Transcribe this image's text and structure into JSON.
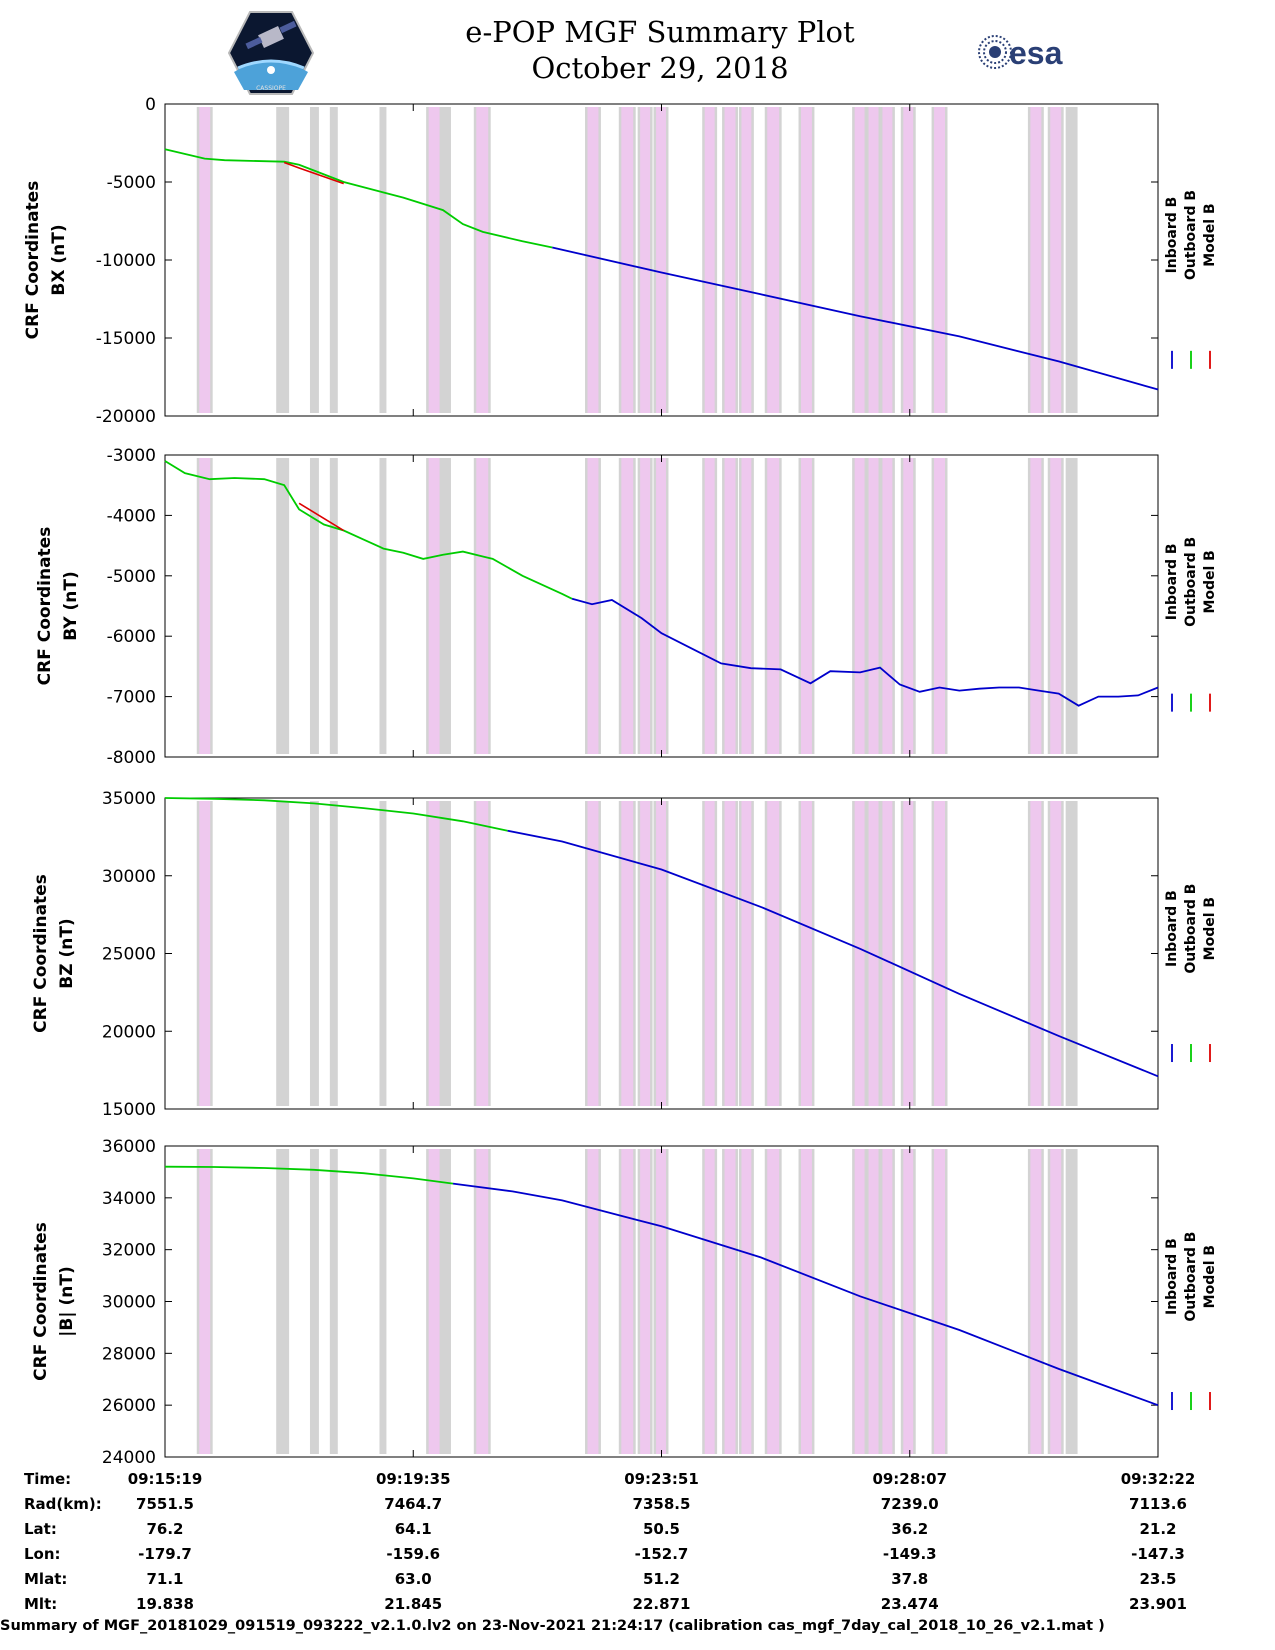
{
  "header": {
    "title_line1": "e-POP MGF Summary Plot",
    "title_line2": "October 29, 2018",
    "logo_left_text": "CASSIOPE",
    "logo_right_text": "esa"
  },
  "colors": {
    "inboard": "#0000cc",
    "outboard": "#00cc00",
    "model": "#dd0000",
    "gap_gray": "#d3d3d3",
    "gap_pink": "#eec8ee"
  },
  "legend": [
    "Inboard B",
    "Outboard B",
    "Model B"
  ],
  "chart_data": [
    {
      "type": "line",
      "ylabel_line1": "CRF Coordinates",
      "ylabel_line2": "BX (nT)",
      "ylim": [
        -20000,
        0
      ],
      "yticks": [
        0,
        -5000,
        -10000,
        -15000,
        -20000
      ],
      "ytick_labels": [
        "0",
        "-5000",
        "-10000",
        "-15000",
        "-20000"
      ],
      "switch_x": 0.39,
      "series": [
        {
          "name": "Outboard B",
          "x": [
            0,
            0.04,
            0.06,
            0.12,
            0.135,
            0.18,
            0.24,
            0.28,
            0.3,
            0.32,
            0.36,
            0.39
          ],
          "y": [
            -2900,
            -3500,
            -3600,
            -3700,
            -3900,
            -5000,
            -6000,
            -6800,
            -7700,
            -8200,
            -8800,
            -9200
          ]
        },
        {
          "name": "Inboard B",
          "x": [
            0.39,
            0.5,
            0.6,
            0.7,
            0.8,
            0.9,
            1.0
          ],
          "y": [
            -9200,
            -10800,
            -12200,
            -13600,
            -14900,
            -16500,
            -18300
          ]
        },
        {
          "name": "Model B",
          "x": [
            0.12,
            0.135,
            0.18
          ],
          "y": [
            -3750,
            -4100,
            -5100
          ]
        }
      ]
    },
    {
      "type": "line",
      "ylabel_line1": "CRF Coordinates",
      "ylabel_line2": "BY (nT)",
      "ylim": [
        -8000,
        -3000
      ],
      "yticks": [
        -3000,
        -4000,
        -5000,
        -6000,
        -7000,
        -8000
      ],
      "ytick_labels": [
        "-3000",
        "-4000",
        "-5000",
        "-6000",
        "-7000",
        "-8000"
      ],
      "switch_x": 0.41,
      "series": [
        {
          "name": "Outboard B",
          "x": [
            0,
            0.02,
            0.045,
            0.07,
            0.1,
            0.12,
            0.135,
            0.16,
            0.18,
            0.2,
            0.22,
            0.24,
            0.26,
            0.28,
            0.3,
            0.32,
            0.33,
            0.36,
            0.4,
            0.41
          ],
          "y": [
            -3100,
            -3300,
            -3400,
            -3380,
            -3400,
            -3500,
            -3900,
            -4150,
            -4250,
            -4400,
            -4550,
            -4620,
            -4720,
            -4650,
            -4600,
            -4680,
            -4720,
            -5000,
            -5300,
            -5380
          ]
        },
        {
          "name": "Inboard B",
          "x": [
            0.41,
            0.43,
            0.45,
            0.48,
            0.5,
            0.53,
            0.56,
            0.59,
            0.62,
            0.65,
            0.67,
            0.7,
            0.72,
            0.74,
            0.76,
            0.78,
            0.8,
            0.82,
            0.84,
            0.86,
            0.88,
            0.9,
            0.92,
            0.94,
            0.96,
            0.98,
            1.0
          ],
          "y": [
            -5380,
            -5470,
            -5400,
            -5700,
            -5950,
            -6200,
            -6450,
            -6530,
            -6550,
            -6780,
            -6580,
            -6600,
            -6520,
            -6800,
            -6920,
            -6850,
            -6900,
            -6870,
            -6850,
            -6850,
            -6900,
            -6950,
            -7150,
            -7000,
            -7000,
            -6980,
            -6850
          ]
        },
        {
          "name": "Model B",
          "x": [
            0.135,
            0.16,
            0.18
          ],
          "y": [
            -3800,
            -4050,
            -4250
          ]
        }
      ]
    },
    {
      "type": "line",
      "ylabel_line1": "CRF Coordinates",
      "ylabel_line2": "BZ (nT)",
      "ylim": [
        15000,
        35000
      ],
      "yticks": [
        35000,
        30000,
        25000,
        20000,
        15000
      ],
      "ytick_labels": [
        "35000",
        "30000",
        "25000",
        "20000",
        "15000"
      ],
      "switch_x": 0.345,
      "series": [
        {
          "name": "Outboard B",
          "x": [
            0,
            0.05,
            0.1,
            0.15,
            0.2,
            0.25,
            0.3,
            0.345
          ],
          "y": [
            35000,
            34950,
            34850,
            34650,
            34350,
            34000,
            33500,
            32900
          ]
        },
        {
          "name": "Inboard B",
          "x": [
            0.345,
            0.4,
            0.5,
            0.6,
            0.7,
            0.8,
            0.9,
            1.0
          ],
          "y": [
            32900,
            32200,
            30400,
            28000,
            25300,
            22400,
            19700,
            17100
          ]
        },
        {
          "name": "Model B",
          "x": [],
          "y": []
        }
      ]
    },
    {
      "type": "line",
      "ylabel_line1": "CRF Coordinates",
      "ylabel_line2": "|B| (nT)",
      "ylim": [
        24000,
        36000
      ],
      "yticks": [
        36000,
        34000,
        32000,
        30000,
        28000,
        26000,
        24000
      ],
      "ytick_labels": [
        "36000",
        "34000",
        "32000",
        "30000",
        "28000",
        "26000",
        "24000"
      ],
      "switch_x": 0.29,
      "series": [
        {
          "name": "Outboard B",
          "x": [
            0,
            0.05,
            0.1,
            0.15,
            0.2,
            0.25,
            0.29
          ],
          "y": [
            35200,
            35190,
            35150,
            35080,
            34950,
            34750,
            34550
          ]
        },
        {
          "name": "Inboard B",
          "x": [
            0.29,
            0.35,
            0.4,
            0.5,
            0.6,
            0.7,
            0.8,
            0.9,
            1.0
          ],
          "y": [
            34550,
            34250,
            33900,
            32900,
            31700,
            30200,
            28900,
            27400,
            26000
          ]
        },
        {
          "name": "Model B",
          "x": [],
          "y": []
        }
      ]
    }
  ],
  "gap_bands": [
    {
      "x": 0.034,
      "w": 0.012,
      "kind": "pink"
    },
    {
      "x": 0.112,
      "w": 0.013,
      "kind": "gray"
    },
    {
      "x": 0.146,
      "w": 0.009,
      "kind": "gray"
    },
    {
      "x": 0.166,
      "w": 0.008,
      "kind": "gray"
    },
    {
      "x": 0.216,
      "w": 0.007,
      "kind": "gray"
    },
    {
      "x": 0.265,
      "w": 0.012,
      "kind": "pink"
    },
    {
      "x": 0.277,
      "w": 0.011,
      "kind": "gray"
    },
    {
      "x": 0.313,
      "w": 0.013,
      "kind": "pink"
    },
    {
      "x": 0.425,
      "w": 0.012,
      "kind": "pink"
    },
    {
      "x": 0.459,
      "w": 0.013,
      "kind": "pink"
    },
    {
      "x": 0.478,
      "w": 0.011,
      "kind": "pink"
    },
    {
      "x": 0.494,
      "w": 0.011,
      "kind": "pink"
    },
    {
      "x": 0.543,
      "w": 0.011,
      "kind": "pink"
    },
    {
      "x": 0.563,
      "w": 0.012,
      "kind": "pink"
    },
    {
      "x": 0.58,
      "w": 0.011,
      "kind": "pink"
    },
    {
      "x": 0.606,
      "w": 0.013,
      "kind": "pink"
    },
    {
      "x": 0.64,
      "w": 0.012,
      "kind": "pink"
    },
    {
      "x": 0.694,
      "w": 0.011,
      "kind": "pink"
    },
    {
      "x": 0.708,
      "w": 0.011,
      "kind": "pink"
    },
    {
      "x": 0.722,
      "w": 0.011,
      "kind": "pink"
    },
    {
      "x": 0.743,
      "w": 0.011,
      "kind": "pink"
    },
    {
      "x": 0.774,
      "w": 0.012,
      "kind": "pink"
    },
    {
      "x": 0.871,
      "w": 0.012,
      "kind": "pink"
    },
    {
      "x": 0.891,
      "w": 0.012,
      "kind": "pink"
    },
    {
      "x": 0.907,
      "w": 0.012,
      "kind": "gray"
    }
  ],
  "x_axis": {
    "ticks": [
      0,
      0.25,
      0.5,
      0.75,
      1.0
    ]
  },
  "info_table": {
    "rows": [
      {
        "label": "Time:",
        "values": [
          "09:15:19",
          "09:19:35",
          "09:23:51",
          "09:28:07",
          "09:32:22"
        ]
      },
      {
        "label": "Rad(km):",
        "values": [
          "7551.5",
          "7464.7",
          "7358.5",
          "7239.0",
          "7113.6"
        ]
      },
      {
        "label": "Lat:",
        "values": [
          "76.2",
          "64.1",
          "50.5",
          "36.2",
          "21.2"
        ]
      },
      {
        "label": "Lon:",
        "values": [
          "-179.7",
          "-159.6",
          "-152.7",
          "-149.3",
          "-147.3"
        ]
      },
      {
        "label": "Mlat:",
        "values": [
          "71.1",
          "63.0",
          "51.2",
          "37.8",
          "23.5"
        ]
      },
      {
        "label": "Mlt:",
        "values": [
          "19.838",
          "21.845",
          "22.871",
          "23.474",
          "23.901"
        ]
      }
    ]
  },
  "footer": "Summary of MGF_20181029_091519_093222_v2.1.0.lv2 on 23-Nov-2021 21:24:17 (calibration cas_mgf_7day_cal_2018_10_26_v2.1.mat )"
}
